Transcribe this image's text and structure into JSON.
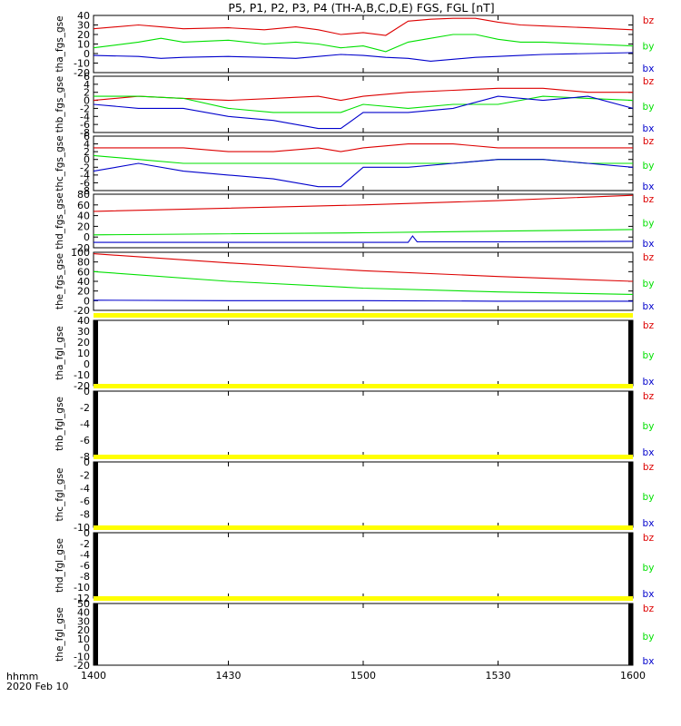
{
  "chart_data": {
    "type": "line",
    "title": "P5, P1, P2, P3, P4 (TH-A,B,C,D,E) FGS, FGL [nT]",
    "x_ticks": [
      "1400",
      "1430",
      "1500",
      "1530",
      "1600"
    ],
    "x_info": [
      "hhmm",
      "2020 Feb 10"
    ],
    "xlim_minutes": [
      0,
      120
    ],
    "legend": [
      "bz",
      "by",
      "bx"
    ],
    "colors": {
      "bx": "#0000cc",
      "by": "#00e000",
      "bz": "#dd0000",
      "flag": "#ffff00"
    },
    "panels": [
      {
        "ylabel": "tha_fgs_gse",
        "ylim": [
          -20,
          40
        ],
        "yticks": [
          "40",
          "30",
          "20",
          "10",
          "0",
          "-10",
          "-20"
        ],
        "series": [
          {
            "name": "bz",
            "x": [
              0,
              10,
              15,
              20,
              30,
              38,
              45,
              50,
              55,
              60,
              65,
              70,
              75,
              80,
              85,
              90,
              95,
              100,
              110,
              120
            ],
            "y": [
              26,
              30,
              28,
              26,
              27,
              25,
              28,
              25,
              20,
              22,
              19,
              34,
              36,
              37,
              37,
              33,
              30,
              29,
              27,
              25
            ]
          },
          {
            "name": "by",
            "x": [
              0,
              10,
              15,
              20,
              30,
              38,
              45,
              50,
              55,
              60,
              65,
              70,
              75,
              80,
              85,
              90,
              95,
              100,
              110,
              120
            ],
            "y": [
              6,
              12,
              16,
              12,
              14,
              10,
              12,
              10,
              6,
              8,
              2,
              12,
              16,
              20,
              20,
              15,
              12,
              12,
              10,
              8
            ]
          },
          {
            "name": "bx",
            "x": [
              0,
              10,
              15,
              20,
              30,
              38,
              45,
              50,
              55,
              60,
              65,
              70,
              75,
              80,
              85,
              90,
              95,
              100,
              110,
              120
            ],
            "y": [
              -2,
              -3,
              -5,
              -4,
              -3,
              -4,
              -5,
              -3,
              -1,
              -2,
              -4,
              -5,
              -8,
              -6,
              -4,
              -3,
              -2,
              -1,
              0,
              1
            ]
          }
        ]
      },
      {
        "ylabel": "thb_fgs_gse",
        "ylim": [
          -8,
          6
        ],
        "yticks": [
          "6",
          "4",
          "2",
          "0",
          "-2",
          "-4",
          "-6",
          "-8"
        ],
        "series": [
          {
            "name": "bz",
            "x": [
              0,
              10,
              20,
              30,
              40,
              50,
              55,
              60,
              70,
              80,
              90,
              100,
              110,
              120
            ],
            "y": [
              0,
              1,
              0.5,
              0,
              0.5,
              1,
              0,
              1,
              2,
              2.5,
              3,
              3,
              2,
              2
            ]
          },
          {
            "name": "by",
            "x": [
              0,
              10,
              20,
              30,
              40,
              50,
              55,
              60,
              70,
              80,
              90,
              100,
              110,
              120
            ],
            "y": [
              1,
              1,
              0.5,
              -2,
              -3,
              -3,
              -3,
              -1,
              -2,
              -1,
              -1,
              1,
              0.5,
              0
            ]
          },
          {
            "name": "bx",
            "x": [
              0,
              10,
              20,
              30,
              40,
              50,
              55,
              60,
              70,
              80,
              90,
              100,
              110,
              120
            ],
            "y": [
              -1,
              -2,
              -2,
              -4,
              -5,
              -7,
              -7,
              -3,
              -3,
              -2,
              1,
              0,
              1,
              -2
            ]
          }
        ]
      },
      {
        "ylabel": "thc_fgs_gse",
        "ylim": [
          -8,
          6
        ],
        "yticks": [
          "6",
          "4",
          "2",
          "0",
          "-2",
          "-4",
          "-6",
          "-8"
        ],
        "series": [
          {
            "name": "bz",
            "x": [
              0,
              10,
              20,
              30,
              40,
              50,
              55,
              60,
              70,
              80,
              90,
              100,
              110,
              120
            ],
            "y": [
              3,
              3,
              3,
              2,
              2,
              3,
              2,
              3,
              4,
              4,
              3,
              3,
              3,
              3
            ]
          },
          {
            "name": "by",
            "x": [
              0,
              10,
              20,
              30,
              40,
              50,
              55,
              60,
              70,
              80,
              90,
              100,
              110,
              120
            ],
            "y": [
              1,
              0,
              -1,
              -1,
              -1,
              -1,
              -1,
              -1,
              -1,
              -1,
              0,
              0,
              -1,
              -1
            ]
          },
          {
            "name": "bx",
            "x": [
              0,
              10,
              20,
              30,
              40,
              50,
              55,
              60,
              70,
              80,
              90,
              100,
              110,
              120
            ],
            "y": [
              -3,
              -1,
              -3,
              -4,
              -5,
              -7,
              -7,
              -2,
              -2,
              -1,
              0,
              0,
              -1,
              -2
            ]
          }
        ]
      },
      {
        "ylabel": "thd_fgs_gse",
        "ylim": [
          -20,
          80
        ],
        "yticks": [
          "80",
          "60",
          "40",
          "20",
          "0",
          "-20"
        ],
        "series": [
          {
            "name": "bz",
            "x": [
              0,
              60,
              90,
              120
            ],
            "y": [
              48,
              60,
              68,
              78
            ]
          },
          {
            "name": "by",
            "x": [
              0,
              60,
              90,
              120
            ],
            "y": [
              4,
              8,
              11,
              14
            ]
          },
          {
            "name": "bx",
            "x": [
              0,
              60,
              70,
              71,
              72,
              90,
              120
            ],
            "y": [
              -10,
              -10,
              -10,
              2,
              -9,
              -9,
              -8
            ]
          }
        ]
      },
      {
        "ylabel": "the_fgs_gse",
        "ylim": [
          -20,
          100
        ],
        "yticks": [
          "100",
          "80",
          "60",
          "40",
          "20",
          "0",
          "-20"
        ],
        "series": [
          {
            "name": "bz",
            "x": [
              0,
              30,
              60,
              90,
              120
            ],
            "y": [
              97,
              78,
              62,
              50,
              40
            ]
          },
          {
            "name": "by",
            "x": [
              0,
              30,
              60,
              90,
              120
            ],
            "y": [
              60,
              40,
              26,
              18,
              13
            ]
          },
          {
            "name": "bx",
            "x": [
              0,
              30,
              60,
              90,
              120
            ],
            "y": [
              1,
              0,
              0,
              -1,
              -1
            ]
          }
        ]
      },
      {
        "ylabel": "tha_fgl_gse",
        "ylim": [
          -20,
          40
        ],
        "yticks": [
          "40",
          "30",
          "20",
          "10",
          "0",
          "-10",
          "-20"
        ],
        "series": []
      },
      {
        "ylabel": "thb_fgl_gse",
        "ylim": [
          -8,
          0
        ],
        "yticks": [
          "0",
          "-2",
          "-4",
          "-6",
          "-8"
        ],
        "series": []
      },
      {
        "ylabel": "thc_fgl_gse",
        "ylim": [
          -10,
          0
        ],
        "yticks": [
          "0",
          "-2",
          "-4",
          "-6",
          "-8",
          "-10"
        ],
        "series": []
      },
      {
        "ylabel": "thd_fgl_gse",
        "ylim": [
          -12,
          0
        ],
        "yticks": [
          "0",
          "-2",
          "-4",
          "-6",
          "-8",
          "-10",
          "-12"
        ],
        "series": []
      },
      {
        "ylabel": "the_fgl_gse",
        "ylim": [
          -20,
          50
        ],
        "yticks": [
          "50",
          "40",
          "30",
          "20",
          "10",
          "0",
          "-10",
          "-20"
        ],
        "series": []
      }
    ]
  }
}
